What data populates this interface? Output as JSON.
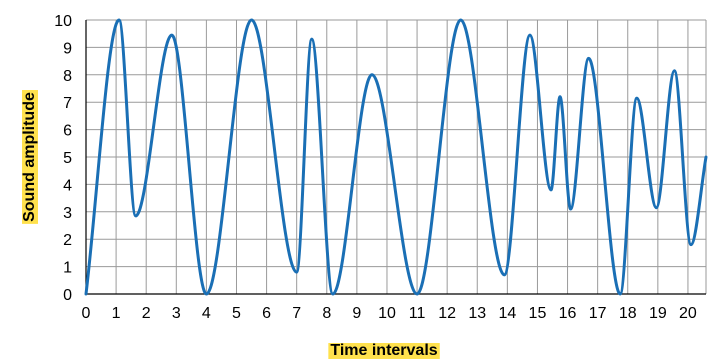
{
  "chart_data": {
    "type": "line",
    "xlabel": "Time intervals",
    "ylabel": "Sound amplitude",
    "xlim": [
      0,
      20.6
    ],
    "ylim": [
      0,
      10
    ],
    "x_ticks": [
      0,
      1,
      2,
      3,
      4,
      5,
      6,
      7,
      8,
      9,
      10,
      11,
      12,
      13,
      14,
      15,
      16,
      17,
      18,
      19,
      20
    ],
    "y_ticks": [
      0,
      1,
      2,
      3,
      4,
      5,
      6,
      7,
      8,
      9,
      10
    ],
    "grid": true,
    "label_highlight_color": "#ffe14d",
    "line_color": "#1a6fb5",
    "grid_color": "#9a9a9a",
    "series": [
      {
        "x": [
          0,
          1.1,
          1.65,
          2.85,
          4.0,
          5.5,
          7.0,
          7.5,
          8.2,
          9.5,
          11.0,
          12.45,
          13.9,
          14.75,
          15.45,
          15.75,
          16.1,
          16.7,
          17.75,
          18.3,
          18.95,
          19.55,
          20.1,
          20.6
        ],
        "y": [
          0,
          10,
          2.85,
          9.45,
          0,
          10,
          0.8,
          9.3,
          0,
          8.0,
          0,
          10,
          0.7,
          9.45,
          3.8,
          7.2,
          3.1,
          8.6,
          0,
          7.15,
          3.15,
          8.15,
          1.8,
          5.0
        ]
      }
    ]
  }
}
